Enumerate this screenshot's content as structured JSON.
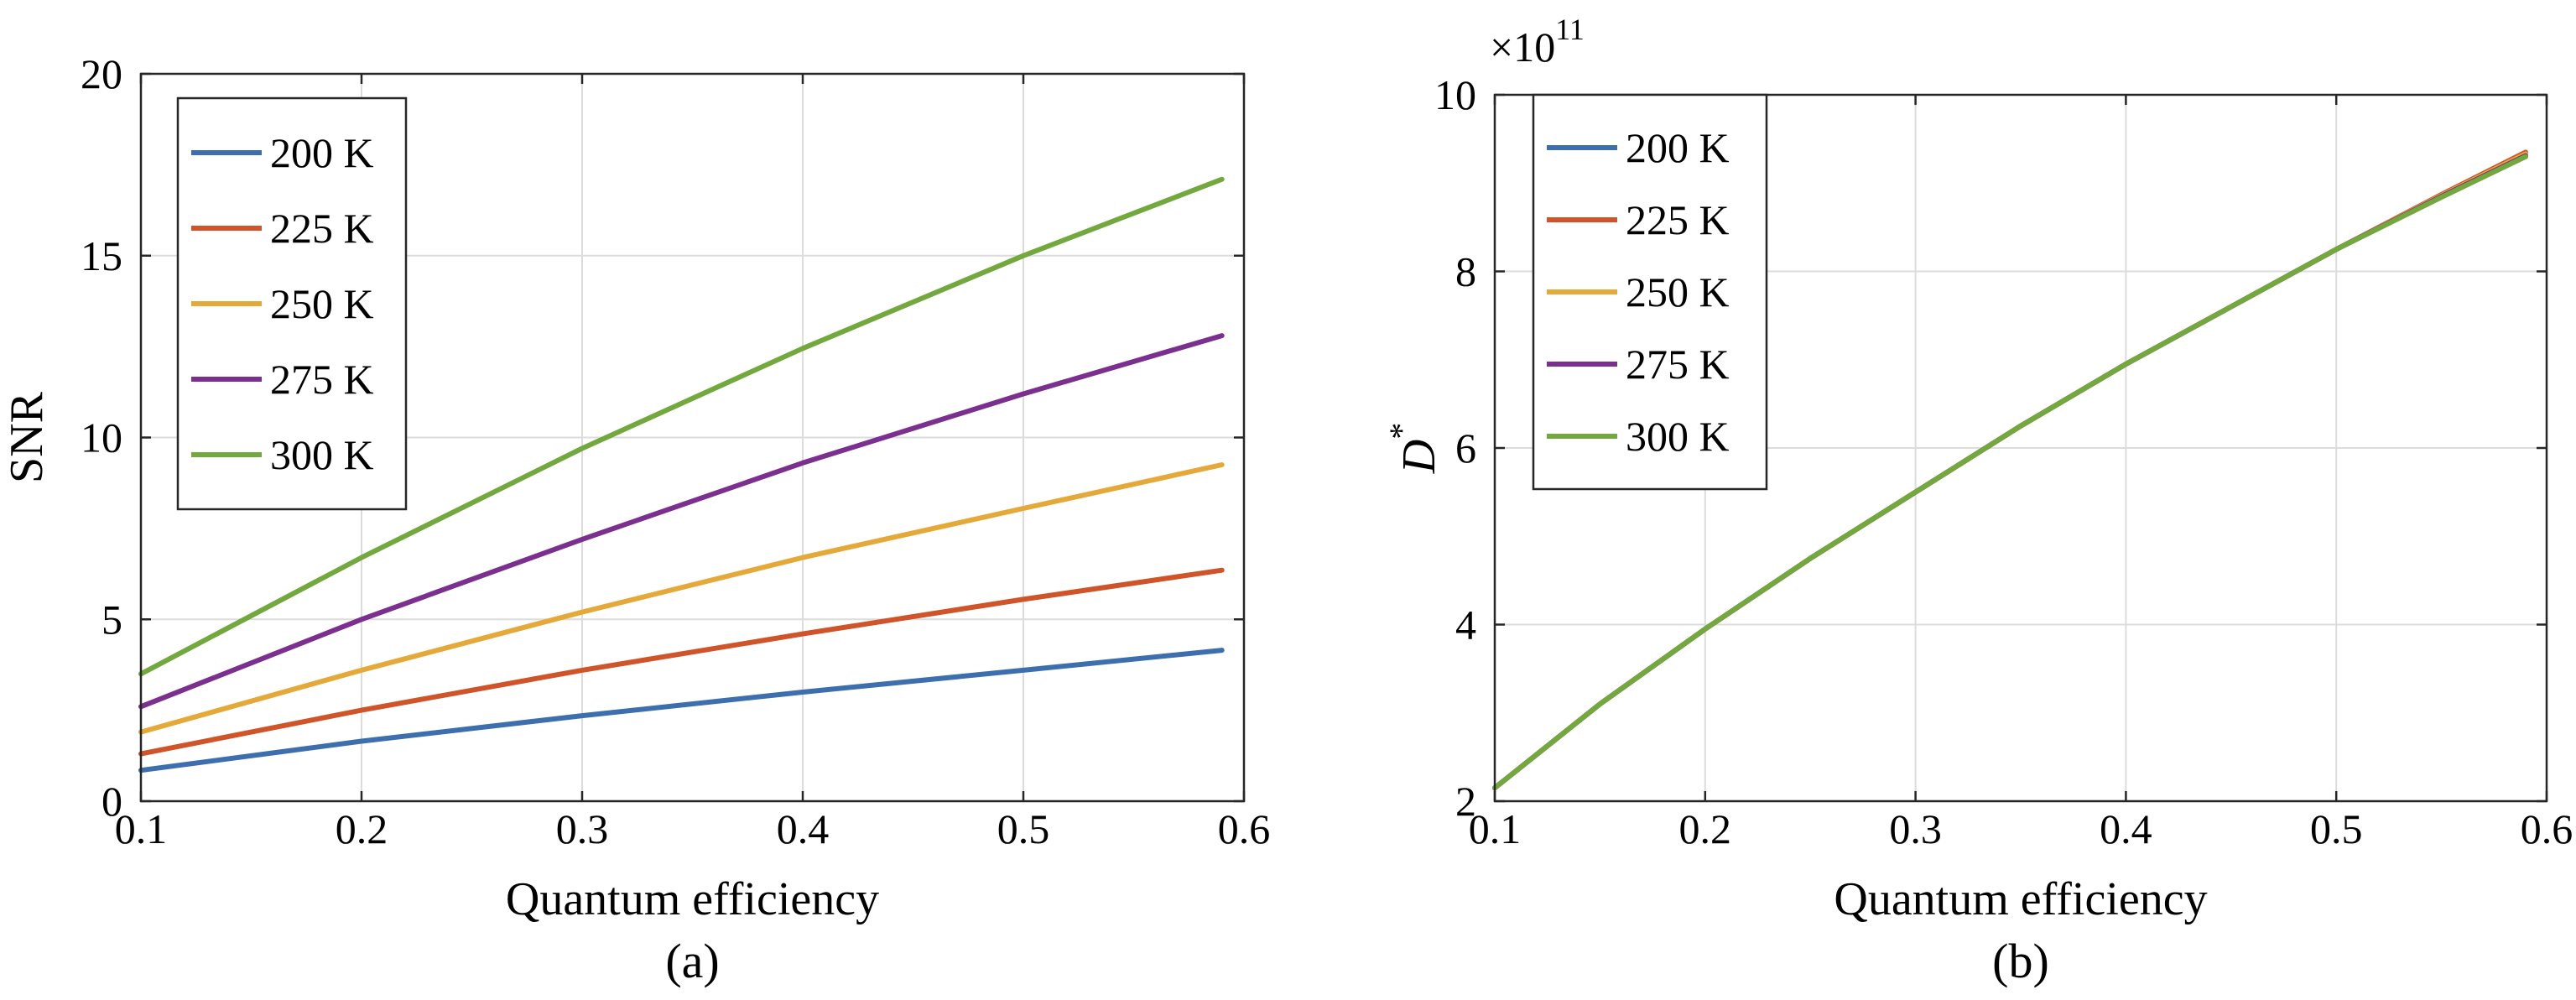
{
  "chart_data": [
    {
      "type": "line",
      "panel_label": "(a)",
      "xlabel": "Quantum efficiency",
      "ylabel": "SNR",
      "xlim": [
        0.1,
        0.6
      ],
      "ylim": [
        0,
        20
      ],
      "xticks": [
        "0.1",
        "0.2",
        "0.3",
        "0.4",
        "0.5",
        "0.6"
      ],
      "yticks": [
        "0",
        "5",
        "10",
        "15",
        "20"
      ],
      "grid": true,
      "legend_position": "top-left",
      "series": [
        {
          "name": "200 K",
          "color": "#3d6fae",
          "x": [
            0.1,
            0.2,
            0.3,
            0.4,
            0.5,
            0.59
          ],
          "y": [
            0.85,
            1.65,
            2.35,
            3.0,
            3.6,
            4.15
          ]
        },
        {
          "name": "225 K",
          "color": "#d0542a",
          "x": [
            0.1,
            0.2,
            0.3,
            0.4,
            0.5,
            0.59
          ],
          "y": [
            1.3,
            2.5,
            3.6,
            4.6,
            5.55,
            6.35
          ]
        },
        {
          "name": "250 K",
          "color": "#e5a93a",
          "x": [
            0.1,
            0.2,
            0.3,
            0.4,
            0.5,
            0.59
          ],
          "y": [
            1.9,
            3.6,
            5.2,
            6.7,
            8.05,
            9.25
          ]
        },
        {
          "name": "275 K",
          "color": "#7b2f8e",
          "x": [
            0.1,
            0.2,
            0.3,
            0.4,
            0.5,
            0.59
          ],
          "y": [
            2.6,
            5.0,
            7.2,
            9.3,
            11.2,
            12.8
          ]
        },
        {
          "name": "300 K",
          "color": "#72a83e",
          "x": [
            0.1,
            0.2,
            0.3,
            0.4,
            0.5,
            0.59
          ],
          "y": [
            3.5,
            6.7,
            9.7,
            12.45,
            15.0,
            17.1
          ]
        }
      ]
    },
    {
      "type": "line",
      "panel_label": "(b)",
      "xlabel": "Quantum efficiency",
      "ylabel": "D",
      "ylabel_superscript": "*",
      "y_multiplier_base": "×10",
      "y_multiplier_exponent": "11",
      "xlim": [
        0.1,
        0.6
      ],
      "ylim": [
        2,
        10
      ],
      "xticks": [
        "0.1",
        "0.2",
        "0.3",
        "0.4",
        "0.5",
        "0.6"
      ],
      "yticks": [
        "2",
        "4",
        "6",
        "8",
        "10"
      ],
      "grid": true,
      "legend_position": "top-left",
      "series": [
        {
          "name": "200 K",
          "color": "#3d6fae",
          "x": [
            0.1,
            0.15,
            0.2,
            0.25,
            0.3,
            0.35,
            0.4,
            0.45,
            0.5,
            0.55,
            0.59
          ],
          "y": [
            2.15,
            3.1,
            3.95,
            4.75,
            5.5,
            6.25,
            6.95,
            7.6,
            8.25,
            8.85,
            9.3
          ]
        },
        {
          "name": "225 K",
          "color": "#d0542a",
          "x": [
            0.1,
            0.15,
            0.2,
            0.25,
            0.3,
            0.35,
            0.4,
            0.45,
            0.5,
            0.55,
            0.59
          ],
          "y": [
            2.15,
            3.1,
            3.95,
            4.75,
            5.5,
            6.25,
            6.95,
            7.6,
            8.25,
            8.87,
            9.35
          ]
        },
        {
          "name": "250 K",
          "color": "#e5a93a",
          "x": [
            0.1,
            0.15,
            0.2,
            0.25,
            0.3,
            0.35,
            0.4,
            0.45,
            0.5,
            0.55,
            0.59
          ],
          "y": [
            2.15,
            3.1,
            3.95,
            4.75,
            5.5,
            6.25,
            6.95,
            7.6,
            8.25,
            8.86,
            9.33
          ]
        },
        {
          "name": "275 K",
          "color": "#7b2f8e",
          "x": [
            0.1,
            0.15,
            0.2,
            0.25,
            0.3,
            0.35,
            0.4,
            0.45,
            0.5,
            0.55,
            0.59
          ],
          "y": [
            2.15,
            3.1,
            3.95,
            4.75,
            5.5,
            6.25,
            6.95,
            7.6,
            8.25,
            8.85,
            9.31
          ]
        },
        {
          "name": "300 K",
          "color": "#72a83e",
          "x": [
            0.1,
            0.15,
            0.2,
            0.25,
            0.3,
            0.35,
            0.4,
            0.45,
            0.5,
            0.55,
            0.59
          ],
          "y": [
            2.15,
            3.1,
            3.95,
            4.75,
            5.5,
            6.25,
            6.95,
            7.6,
            8.25,
            8.84,
            9.3
          ]
        }
      ]
    }
  ]
}
